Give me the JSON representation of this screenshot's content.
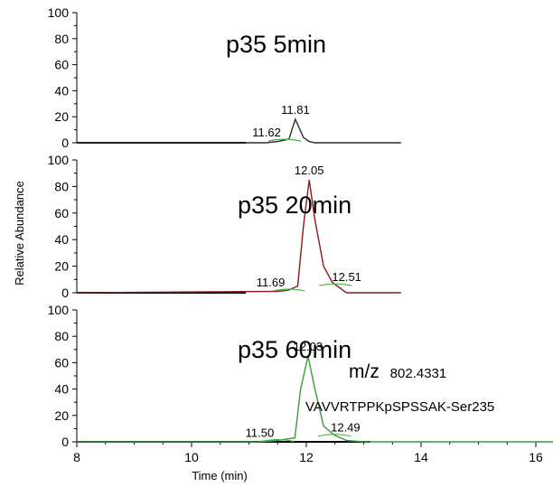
{
  "chart_data": [
    {
      "type": "line",
      "title": "p35 5min",
      "ylim": [
        0,
        100
      ],
      "yticks": [
        "0",
        "20",
        "40",
        "60",
        "80",
        "100"
      ],
      "xlim": [
        8,
        17.8
      ],
      "color": "#2b2b2b",
      "series": [
        {
          "x": [
            8,
            11.3,
            11.5,
            11.62,
            11.7,
            11.75,
            11.81,
            11.87,
            11.95,
            12.05,
            12.15,
            13.65
          ],
          "y": [
            0,
            0,
            1,
            2,
            3,
            10,
            18,
            12,
            4,
            1,
            0,
            0
          ]
        }
      ],
      "peaks": [
        {
          "x": 11.81,
          "y": 18,
          "label": "11.81"
        },
        {
          "x": 11.62,
          "y": 2,
          "label": "11.62"
        }
      ]
    },
    {
      "type": "line",
      "title": "p35 20min",
      "ylim": [
        0,
        100
      ],
      "yticks": [
        "0",
        "20",
        "40",
        "60",
        "80",
        "100"
      ],
      "xlim": [
        8,
        17.8
      ],
      "color": "#8b1a1a",
      "series": [
        {
          "x": [
            8,
            11.5,
            11.69,
            11.85,
            11.95,
            12.05,
            12.15,
            12.3,
            12.45,
            12.51,
            12.7,
            13.65
          ],
          "y": [
            0,
            1,
            2,
            5,
            50,
            85,
            55,
            20,
            8,
            6,
            0,
            0
          ]
        }
      ],
      "peaks": [
        {
          "x": 12.05,
          "y": 85,
          "label": "12.05"
        },
        {
          "x": 11.69,
          "y": 2,
          "label": "11.69"
        },
        {
          "x": 12.51,
          "y": 6,
          "label": "12.51"
        }
      ]
    },
    {
      "type": "line",
      "title": "p35 60min",
      "ylim": [
        0,
        100
      ],
      "yticks": [
        "0",
        "20",
        "40",
        "60",
        "80",
        "100"
      ],
      "xlim": [
        8,
        17.8
      ],
      "xticks": [
        "8",
        "10",
        "12",
        "14",
        "16"
      ],
      "xlabel": "Time (min)",
      "color": "#3a9a3a",
      "series": [
        {
          "x": [
            8,
            11.2,
            11.5,
            11.8,
            11.9,
            12.03,
            12.15,
            12.3,
            12.49,
            12.7,
            13,
            17.8
          ],
          "y": [
            0,
            0,
            1,
            3,
            40,
            65,
            40,
            12,
            5,
            1,
            0,
            0
          ]
        }
      ],
      "peaks": [
        {
          "x": 12.03,
          "y": 65,
          "label": "12.03"
        },
        {
          "x": 11.5,
          "y": 1,
          "label": "11.50"
        },
        {
          "x": 12.49,
          "y": 5,
          "label": "12.49"
        }
      ]
    }
  ],
  "ylabel": "Relative Abundance",
  "annotations": {
    "mz_prefix": "m/z",
    "mz_value": "802.4331",
    "sequence": "VAVVRTPPKpSPSSAK-Ser235"
  }
}
